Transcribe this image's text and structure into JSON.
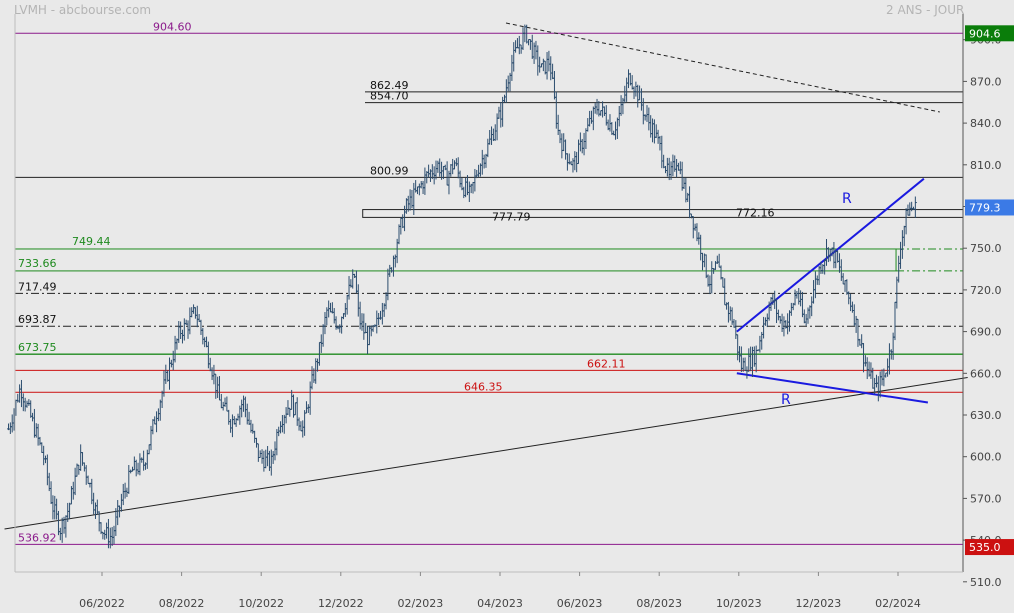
{
  "header": {
    "left": "LVMH - abcbourse.com",
    "right": "2 ANS - JOUR"
  },
  "chart_data": {
    "type": "candlestick",
    "title": "LVMH - abcbourse.com",
    "subtitle": "2 ANS - JOUR",
    "ylim": [
      495,
      925
    ],
    "y_ticks": [
      "510.0",
      "540.0",
      "570.0",
      "600.0",
      "630.0",
      "660.0",
      "690.0",
      "720.0",
      "750.0",
      "780.0",
      "810.0",
      "840.0",
      "870.0",
      "900.0"
    ],
    "x_ticks": [
      {
        "label": "06/2022",
        "t": 1
      },
      {
        "label": "08/2022",
        "t": 3
      },
      {
        "label": "10/2022",
        "t": 5
      },
      {
        "label": "12/2022",
        "t": 7
      },
      {
        "label": "02/2023",
        "t": 9
      },
      {
        "label": "04/2023",
        "t": 11
      },
      {
        "label": "06/2023",
        "t": 13
      },
      {
        "label": "08/2023",
        "t": 15
      },
      {
        "label": "10/2023",
        "t": 17
      },
      {
        "label": "12/2023",
        "t": 19
      },
      {
        "label": "02/2024",
        "t": 21
      }
    ],
    "t_range": [
      -1.6,
      22.6
    ],
    "price_path": [
      [
        -1.5,
        620
      ],
      [
        -1.2,
        650
      ],
      [
        -0.9,
        625
      ],
      [
        -0.6,
        598
      ],
      [
        -0.4,
        565
      ],
      [
        -0.2,
        548
      ],
      [
        0.0,
        562
      ],
      [
        0.3,
        600
      ],
      [
        0.5,
        585
      ],
      [
        0.7,
        560
      ],
      [
        0.9,
        545
      ],
      [
        1.1,
        542
      ],
      [
        1.3,
        565
      ],
      [
        1.6,
        590
      ],
      [
        1.9,
        595
      ],
      [
        2.2,
        630
      ],
      [
        2.5,
        660
      ],
      [
        2.8,
        690
      ],
      [
        3.0,
        695
      ],
      [
        3.2,
        705
      ],
      [
        3.4,
        685
      ],
      [
        3.6,
        665
      ],
      [
        3.8,
        640
      ],
      [
        4.1,
        625
      ],
      [
        4.4,
        640
      ],
      [
        4.6,
        618
      ],
      [
        4.8,
        600
      ],
      [
        5.1,
        595
      ],
      [
        5.3,
        625
      ],
      [
        5.6,
        640
      ],
      [
        5.9,
        620
      ],
      [
        6.1,
        650
      ],
      [
        6.3,
        675
      ],
      [
        6.5,
        705
      ],
      [
        6.8,
        695
      ],
      [
        7.0,
        715
      ],
      [
        7.2,
        730
      ],
      [
        7.3,
        700
      ],
      [
        7.5,
        685
      ],
      [
        7.7,
        690
      ],
      [
        7.9,
        710
      ],
      [
        8.1,
        735
      ],
      [
        8.3,
        760
      ],
      [
        8.5,
        780
      ],
      [
        8.8,
        792
      ],
      [
        9.0,
        802
      ],
      [
        9.3,
        810
      ],
      [
        9.5,
        800
      ],
      [
        9.7,
        812
      ],
      [
        9.9,
        795
      ],
      [
        10.1,
        788
      ],
      [
        10.3,
        808
      ],
      [
        10.5,
        820
      ],
      [
        10.7,
        835
      ],
      [
        10.9,
        850
      ],
      [
        11.1,
        880
      ],
      [
        11.3,
        895
      ],
      [
        11.5,
        905
      ],
      [
        11.7,
        890
      ],
      [
        11.9,
        878
      ],
      [
        12.1,
        885
      ],
      [
        12.3,
        835
      ],
      [
        12.5,
        818
      ],
      [
        12.7,
        810
      ],
      [
        12.9,
        825
      ],
      [
        13.1,
        840
      ],
      [
        13.3,
        852
      ],
      [
        13.5,
        845
      ],
      [
        13.7,
        835
      ],
      [
        13.9,
        850
      ],
      [
        14.1,
        875
      ],
      [
        14.3,
        862
      ],
      [
        14.5,
        845
      ],
      [
        14.7,
        835
      ],
      [
        14.9,
        820
      ],
      [
        15.1,
        800
      ],
      [
        15.3,
        815
      ],
      [
        15.5,
        790
      ],
      [
        15.7,
        770
      ],
      [
        15.9,
        750
      ],
      [
        16.1,
        725
      ],
      [
        16.3,
        738
      ],
      [
        16.5,
        712
      ],
      [
        16.7,
        698
      ],
      [
        16.9,
        665
      ],
      [
        17.1,
        668
      ],
      [
        17.3,
        675
      ],
      [
        17.5,
        700
      ],
      [
        17.7,
        713
      ],
      [
        17.9,
        696
      ],
      [
        18.1,
        698
      ],
      [
        18.3,
        720
      ],
      [
        18.5,
        695
      ],
      [
        18.7,
        718
      ],
      [
        18.9,
        738
      ],
      [
        19.1,
        750
      ],
      [
        19.3,
        742
      ],
      [
        19.5,
        722
      ],
      [
        19.7,
        708
      ],
      [
        19.9,
        682
      ],
      [
        20.1,
        660
      ],
      [
        20.3,
        648
      ],
      [
        20.5,
        658
      ],
      [
        20.7,
        682
      ],
      [
        20.9,
        752
      ],
      [
        21.1,
        778
      ],
      [
        21.3,
        779
      ]
    ],
    "horizontal_lines": [
      {
        "label": "904.60",
        "value": 904.6,
        "color": "#8b1a8b",
        "style": "solid"
      },
      {
        "label": "862.49",
        "value": 862.49,
        "color": "#222222",
        "style": "solid"
      },
      {
        "label": "854.70",
        "value": 854.7,
        "color": "#222222",
        "style": "solid"
      },
      {
        "label": "800.99",
        "value": 800.99,
        "color": "#222222",
        "style": "solid"
      },
      {
        "label": "717.49",
        "value": 717.49,
        "color": "#222222",
        "style": "dashdot"
      },
      {
        "label": "693.87",
        "value": 693.87,
        "color": "#222222",
        "style": "dashdot"
      },
      {
        "label": "673.75",
        "value": 673.75,
        "color": "#1f8a1f",
        "style": "solid"
      },
      {
        "label": "536.92",
        "value": 536.92,
        "color": "#8b1a8b",
        "style": "solid"
      }
    ],
    "zones": [
      {
        "labels": [
          "777.79",
          "772.16"
        ],
        "top": 777.79,
        "bottom": 772.16,
        "color": "#222222",
        "t_start": 7.4,
        "t_end": 22.6
      },
      {
        "labels": [
          "749.44",
          "733.66"
        ],
        "top": 749.44,
        "bottom": 733.66,
        "color": "#1f8a1f",
        "t_start": -1.6,
        "t_end": 20.8
      },
      {
        "labels": [
          "662.11",
          "646.35"
        ],
        "top": 662.11,
        "bottom": 646.35,
        "color": "#cc1111",
        "t_start": -1.6,
        "t_end": 22.6
      }
    ],
    "trendlines": [
      {
        "name": "long-term-support",
        "from": [
          -1.6,
          548
        ],
        "to": [
          22.6,
          657
        ],
        "color": "#222222",
        "style": "solid"
      },
      {
        "name": "resistance-dashed",
        "from": [
          11.0,
          912
        ],
        "to": [
          21.9,
          848
        ],
        "color": "#222222",
        "style": "dashed"
      },
      {
        "name": "upper-R-line",
        "from": [
          16.8,
          690
        ],
        "to": [
          21.5,
          800
        ],
        "color": "#1a1ae0",
        "style": "solid",
        "label": "R"
      },
      {
        "name": "lower-R-line",
        "from": [
          16.8,
          660
        ],
        "to": [
          21.6,
          639
        ],
        "color": "#1a1ae0",
        "style": "solid",
        "label": "R"
      }
    ],
    "right_badges": [
      {
        "text": "904.6",
        "value": 904.6,
        "color": "#0a7d0a"
      },
      {
        "text": "779.3",
        "value": 779.3,
        "color": "#3b7ae6"
      },
      {
        "text": "535.0",
        "value": 535.0,
        "color": "#cc1111"
      }
    ]
  }
}
